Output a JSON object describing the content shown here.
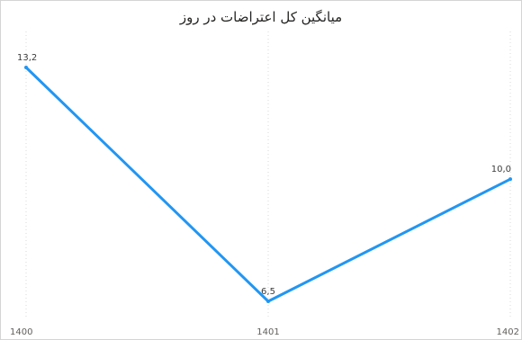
{
  "chart_data": {
    "type": "line",
    "title": "میانگین کل اعتراضات در روز",
    "x": [
      "1400",
      "1401",
      "1402"
    ],
    "series": [
      {
        "values": [
          13.2,
          6.5,
          10.0
        ],
        "labels": [
          "13,2",
          "6,5",
          "10,0"
        ]
      }
    ],
    "colors": {
      "line": "#2196f3",
      "grid": "#d9d9d9"
    },
    "grid": true,
    "legend": "none"
  }
}
